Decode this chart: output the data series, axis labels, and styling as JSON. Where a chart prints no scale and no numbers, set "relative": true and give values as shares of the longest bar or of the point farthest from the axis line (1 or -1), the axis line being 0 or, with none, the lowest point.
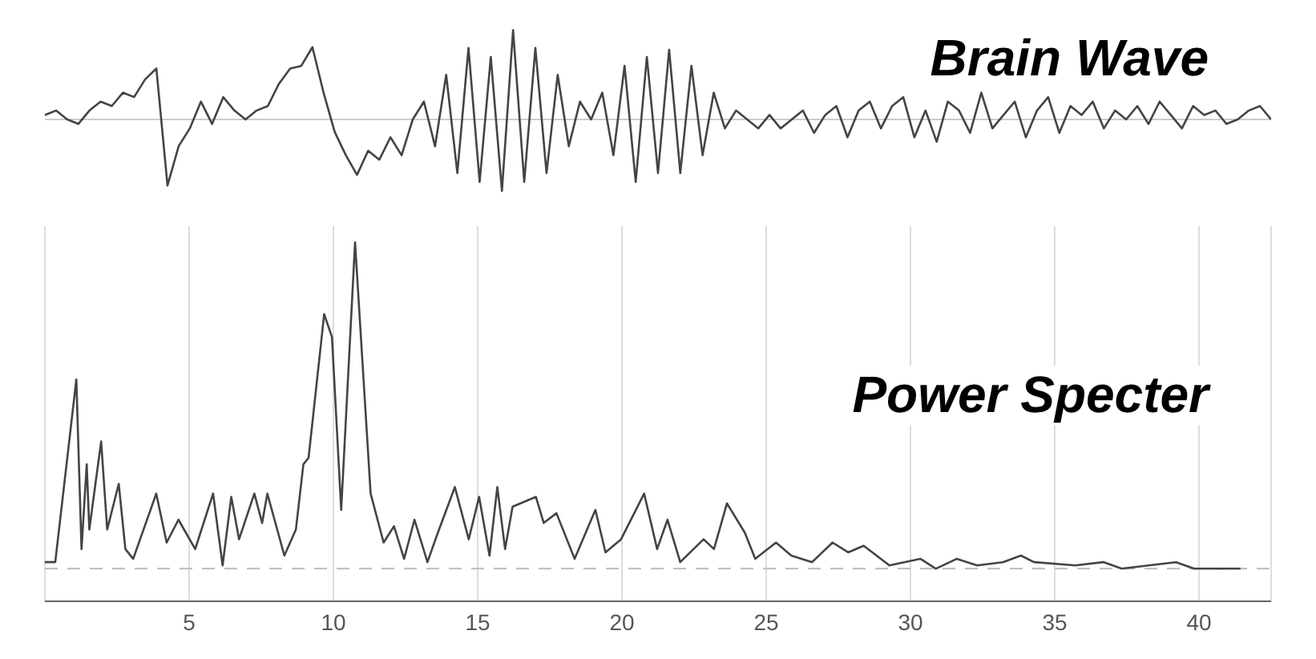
{
  "chart_data": [
    {
      "type": "line",
      "title": "Brain Wave",
      "relative": true,
      "tick_labels": false,
      "marker": "none",
      "line_style": "solid",
      "grid": false,
      "categories": [
        null,
        null,
        null,
        null,
        null,
        null,
        null,
        null,
        null,
        null,
        null,
        null,
        null,
        null,
        null,
        null,
        null,
        null,
        null,
        null,
        null,
        null,
        null,
        null,
        null,
        null,
        null,
        null,
        null,
        null,
        null,
        null,
        null,
        null,
        null,
        null,
        null,
        null,
        null,
        null,
        null,
        null,
        null,
        null,
        null,
        null,
        null,
        null,
        null,
        null,
        null,
        null,
        null,
        null,
        null,
        null,
        null,
        null,
        null,
        null,
        null,
        null,
        null,
        null,
        null,
        null,
        null,
        null,
        null,
        null,
        null,
        null,
        null,
        null,
        null,
        null,
        null,
        null,
        null,
        null,
        null,
        null,
        null,
        null,
        null,
        null,
        null,
        null,
        null,
        null,
        null,
        null,
        null,
        null,
        null,
        null,
        null,
        null,
        null,
        null,
        null,
        null,
        null,
        null,
        null,
        null,
        null,
        null,
        null,
        null,
        null
      ],
      "ref_lines": [
        {
          "axis": "y",
          "value": 0,
          "color": "#cccccc",
          "line_style": "solid"
        }
      ],
      "series": [
        {
          "color": "#444444",
          "values": [
            0.05,
            0.1,
            0.0,
            -0.05,
            0.1,
            0.2,
            0.15,
            0.3,
            0.25,
            0.45,
            0.57,
            -0.74,
            -0.3,
            -0.1,
            0.2,
            -0.05,
            0.25,
            0.1,
            0.0,
            0.1,
            0.15,
            0.4,
            0.57,
            0.6,
            0.81,
            0.3,
            -0.14,
            -0.4,
            -0.62,
            -0.35,
            -0.45,
            -0.2,
            -0.4,
            0.0,
            0.2,
            -0.3,
            0.5,
            -0.6,
            0.8,
            -0.7,
            0.7,
            -0.8,
            1.0,
            -0.7,
            0.8,
            -0.6,
            0.5,
            -0.3,
            0.2,
            0.0,
            0.3,
            -0.4,
            0.6,
            -0.7,
            0.7,
            -0.6,
            0.78,
            -0.6,
            0.6,
            -0.4,
            0.3,
            -0.1,
            0.1,
            0.0,
            -0.1,
            0.05,
            -0.1,
            0.0,
            0.1,
            -0.15,
            0.05,
            0.15,
            -0.2,
            0.1,
            0.2,
            -0.1,
            0.15,
            0.25,
            -0.2,
            0.1,
            -0.25,
            0.2,
            0.1,
            -0.15,
            0.3,
            -0.1,
            0.05,
            0.2,
            -0.2,
            0.1,
            0.25,
            -0.15,
            0.15,
            0.05,
            0.2,
            -0.1,
            0.1,
            0.0,
            0.15,
            -0.05,
            0.2,
            0.05,
            -0.1,
            0.15,
            0.05,
            0.1,
            -0.05,
            0.0,
            0.1,
            0.15,
            0.0
          ]
        }
      ]
    },
    {
      "type": "line",
      "title": "Power Specter",
      "relative": true,
      "tick_labels": "x",
      "marker": "none",
      "line_style": "solid",
      "grid": "x",
      "xlim": [
        0,
        42.5
      ],
      "xticks": [
        5,
        10,
        15,
        20,
        25,
        30,
        35,
        40
      ],
      "ref_lines": [
        {
          "axis": "y",
          "value": 0,
          "color": "#bbbbbb",
          "line_style": "dashed"
        }
      ],
      "series": [
        {
          "color": "#444444",
          "x": [
            0,
            0.36,
            1.09,
            1.27,
            1.45,
            1.54,
            1.95,
            2.16,
            2.56,
            2.79,
            3.06,
            3.86,
            4.22,
            4.63,
            5.21,
            5.83,
            6.16,
            6.46,
            6.73,
            7.26,
            7.53,
            7.71,
            8.3,
            8.7,
            8.96,
            9.14,
            9.68,
            9.95,
            10.27,
            10.75,
            11.29,
            11.74,
            12.1,
            12.45,
            12.81,
            13.26,
            13.62,
            14.21,
            14.69,
            15.05,
            15.41,
            15.68,
            15.95,
            16.21,
            17.02,
            17.29,
            17.73,
            18.36,
            19.08,
            19.43,
            19.97,
            20.77,
            21.22,
            21.58,
            22.02,
            22.83,
            23.19,
            23.64,
            24.26,
            24.62,
            25.34,
            25.87,
            26.59,
            27.3,
            27.84,
            28.38,
            29.27,
            30.35,
            30.88,
            31.6,
            32.31,
            33.21,
            33.83,
            34.28,
            35.71,
            36.7,
            37.32,
            39.2,
            39.83,
            41.44
          ],
          "values": [
            0.02,
            0.02,
            0.58,
            0.06,
            0.32,
            0.12,
            0.39,
            0.12,
            0.26,
            0.06,
            0.03,
            0.23,
            0.08,
            0.15,
            0.06,
            0.23,
            0.01,
            0.22,
            0.09,
            0.23,
            0.14,
            0.23,
            0.04,
            0.12,
            0.32,
            0.34,
            0.78,
            0.71,
            0.18,
            1.0,
            0.23,
            0.08,
            0.13,
            0.03,
            0.15,
            0.02,
            0.11,
            0.25,
            0.09,
            0.22,
            0.04,
            0.25,
            0.06,
            0.19,
            0.22,
            0.14,
            0.17,
            0.03,
            0.18,
            0.05,
            0.09,
            0.23,
            0.06,
            0.15,
            0.02,
            0.09,
            0.06,
            0.2,
            0.11,
            0.03,
            0.08,
            0.04,
            0.02,
            0.08,
            0.05,
            0.07,
            0.01,
            0.03,
            0.0,
            0.03,
            0.01,
            0.02,
            0.04,
            0.02,
            0.01,
            0.02,
            0.0,
            0.02,
            0.0,
            0.0
          ]
        }
      ]
    }
  ]
}
